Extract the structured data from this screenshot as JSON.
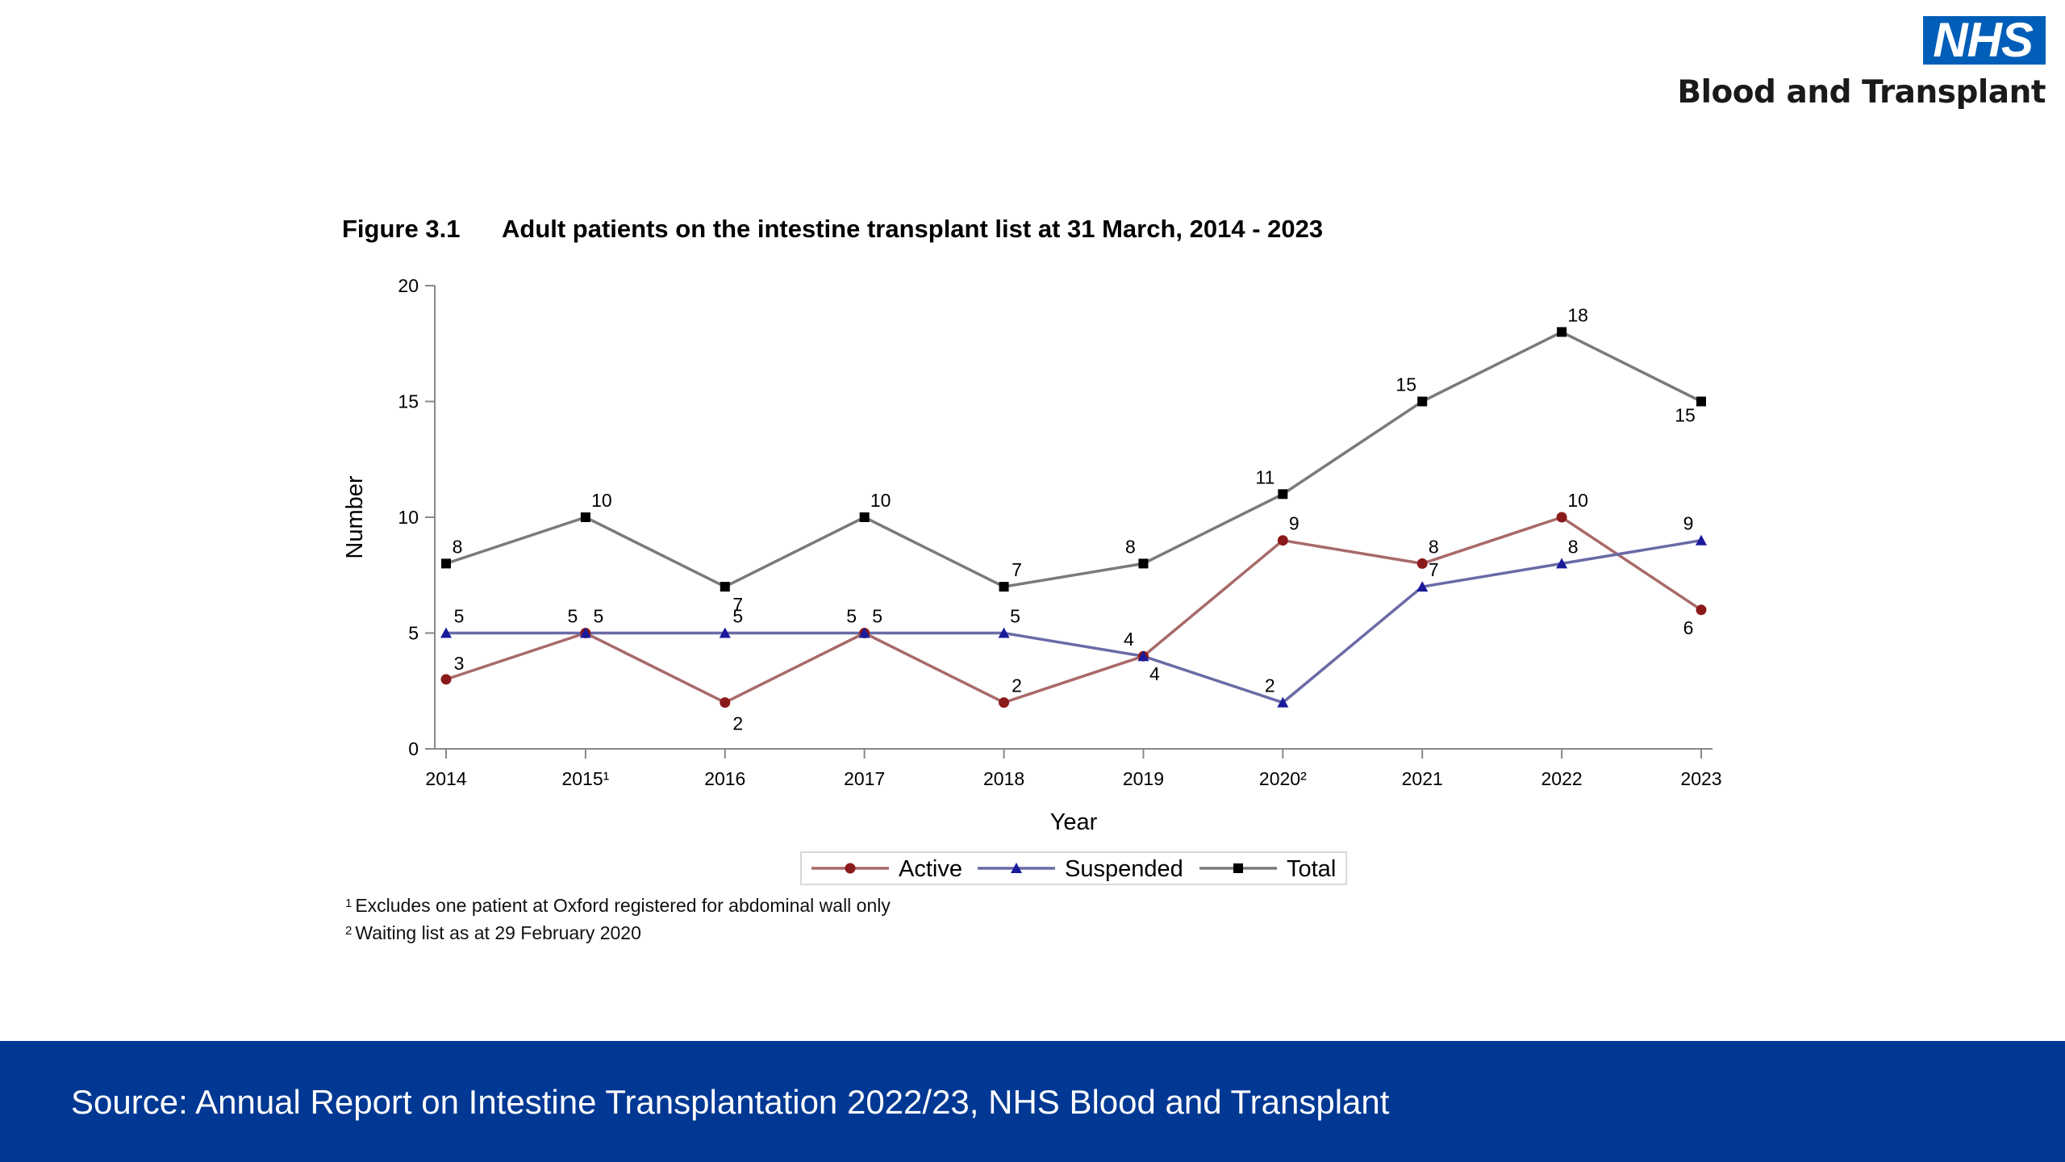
{
  "logo": {
    "nhs": "NHS",
    "org": "Blood and Transplant"
  },
  "figure": {
    "label": "Figure 3.1",
    "title": "Adult patients on the intestine transplant list at 31 March, 2014 - 2023"
  },
  "chart_data": {
    "type": "line",
    "title": "Adult patients on the intestine transplant list at 31 March, 2014 - 2023",
    "xlabel": "Year",
    "ylabel": "Number",
    "ylim": [
      0,
      20
    ],
    "yticks": [
      "0",
      "5",
      "10",
      "15",
      "20"
    ],
    "categories": [
      "2014",
      "2015¹",
      "2016",
      "2017",
      "2018",
      "2019",
      "2020²",
      "2021",
      "2022",
      "2023"
    ],
    "legend_position": "bottom-center",
    "grid": false,
    "series": [
      {
        "name": "Active",
        "color": "#a86a6a",
        "marker_color": "#8b1a1a",
        "marker": "circle",
        "values": [
          3,
          5,
          2,
          5,
          2,
          4,
          9,
          8,
          10,
          6
        ]
      },
      {
        "name": "Suspended",
        "color": "#6a6aa6",
        "marker_color": "#1a1a9c",
        "marker": "triangle",
        "values": [
          5,
          5,
          5,
          5,
          5,
          4,
          2,
          7,
          8,
          9
        ]
      },
      {
        "name": "Total",
        "color": "#7a7a7a",
        "marker_color": "#000000",
        "marker": "square",
        "values": [
          8,
          10,
          7,
          10,
          7,
          8,
          11,
          15,
          18,
          15
        ]
      }
    ]
  },
  "footnotes": [
    {
      "mark": "1",
      "text": "Excludes one patient at Oxford registered for abdominal wall only"
    },
    {
      "mark": "2",
      "text": "Waiting list as at 29 February 2020"
    }
  ],
  "footer": {
    "source": "Source: Annual Report on Intestine Transplantation 2022/23, NHS Blood and Transplant"
  }
}
